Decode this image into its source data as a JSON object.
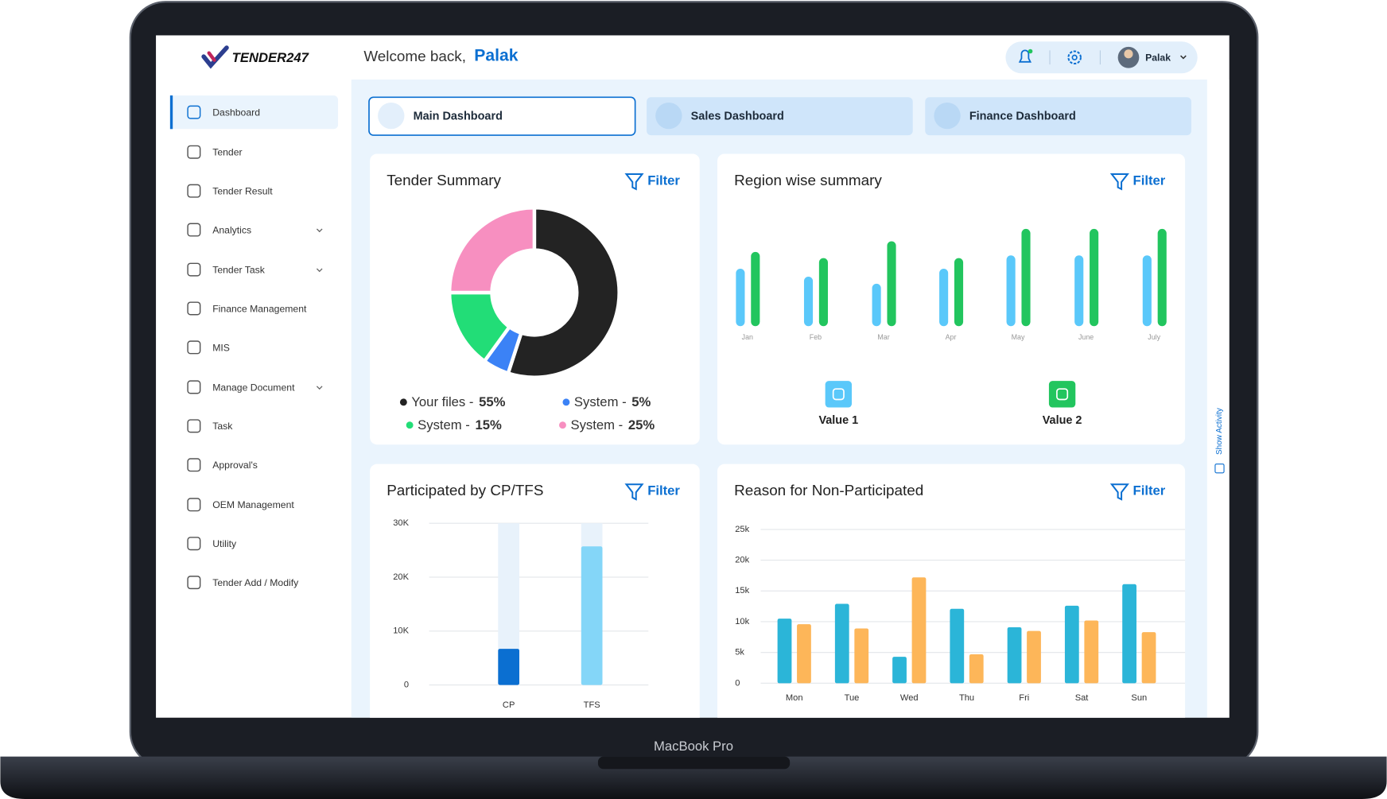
{
  "device_label": "MacBook Pro",
  "header": {
    "logo": "TENDER247",
    "welcome": "Welcome back,",
    "user_name": "Palak",
    "profile_name": "Palak"
  },
  "sidebar": {
    "active": 0,
    "items": [
      "Dashboard",
      "Tender",
      "Tender Result",
      "Analytics",
      "Tender Task",
      "Finance Management",
      "MIS",
      "Manage Document",
      "Task",
      "Approval's",
      "OEM Management",
      "Utility",
      "Tender Add / Modify"
    ]
  },
  "tabs": [
    "Main Dashboard",
    "Sales Dashboard",
    "Finance Dashboard"
  ],
  "show_activity": "Show Activity",
  "filter_label": "Filter",
  "chart_data": [
    {
      "type": "donut",
      "title": "Tender Summary",
      "categories": [
        "Your files -",
        "System -",
        "System -",
        "System -"
      ],
      "values": [
        55,
        5,
        15,
        25
      ],
      "value_labels": [
        "55%",
        "5%",
        "15%",
        "25%"
      ],
      "colors": [
        "#232323",
        "#3b82f6",
        "#22dd77",
        "#f78fc0"
      ]
    },
    {
      "type": "bar",
      "title": "Region wise summary",
      "categories": [
        "Jan",
        "Feb",
        "Mar",
        "Apr",
        "May",
        "June",
        "July"
      ],
      "series": [
        {
          "name": "Value 1",
          "color": "#5ac8fa",
          "values": [
            65,
            56,
            48,
            65,
            80,
            80,
            80
          ]
        },
        {
          "name": "Value 2",
          "color": "#22c55e",
          "values": [
            84,
            77,
            96,
            77,
            110,
            110,
            110
          ]
        }
      ]
    },
    {
      "type": "bar",
      "title": "Participated by CP/TFS",
      "categories": [
        "CP",
        "TFS"
      ],
      "values": [
        6700,
        25700
      ],
      "colors": [
        "#0b6fd1",
        "#84d6f8"
      ],
      "track_color": "#e8f2fb",
      "ylim": [
        0,
        30000
      ],
      "yticks": [
        0,
        {
          "value": 10000,
          "label": "10K"
        },
        {
          "value": 20000,
          "label": "20K"
        },
        {
          "value": 30000,
          "label": "30K"
        }
      ]
    },
    {
      "type": "bar",
      "title": "Reason for Non-Participated",
      "categories": [
        "Mon",
        "Tue",
        "Wed",
        "Thu",
        "Fri",
        "Sat",
        "Sun"
      ],
      "series": [
        {
          "color": "#2bb5d8",
          "values": [
            10500,
            12900,
            4300,
            12100,
            9100,
            12600,
            16100
          ]
        },
        {
          "color": "#fdb659",
          "values": [
            9600,
            8900,
            17200,
            4700,
            8500,
            10200,
            8300
          ]
        }
      ],
      "ylim": [
        0,
        25000
      ],
      "yticks": [
        0,
        {
          "value": 5000,
          "label": "5k"
        },
        {
          "value": 10000,
          "label": "10k"
        },
        {
          "value": 15000,
          "label": "15k"
        },
        {
          "value": 20000,
          "label": "20k"
        },
        {
          "value": 25000,
          "label": "25k"
        }
      ],
      "grid": true
    }
  ]
}
